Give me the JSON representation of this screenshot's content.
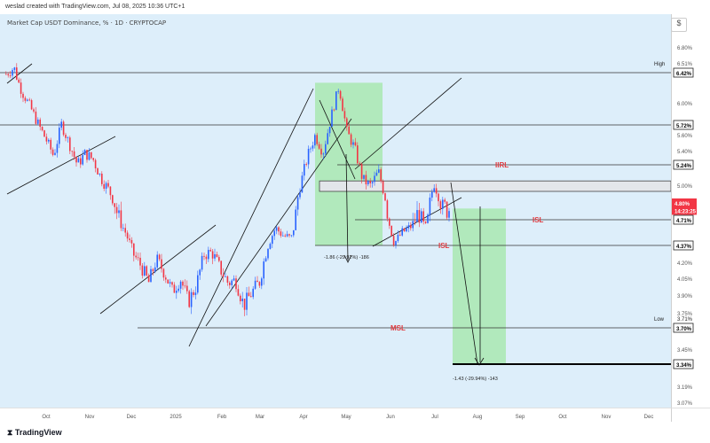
{
  "header": {
    "created_by": "weslad created with TradingView.com, Jul 08, 2025 10:36 UTC+1"
  },
  "footer": {
    "brand": "TradingView"
  },
  "chart_data": {
    "type": "candlestick",
    "title": "Market Cap USDT Dominance, % · 1D · CRYPTOCAP",
    "x_tick_labels": [
      "Oct",
      "Nov",
      "Dec",
      "2025",
      "Feb",
      "Mar",
      "Apr",
      "May",
      "Jun",
      "Jul",
      "Aug",
      "Sep",
      "Oct",
      "Nov",
      "Dec"
    ],
    "y_tick_labels": [
      "6.80%",
      "6.51%",
      "6.00%",
      "5.60%",
      "5.40%",
      "5.00%",
      "4.20%",
      "4.05%",
      "3.90%",
      "3.75%",
      "3.45%",
      "3.19%",
      "3.07%"
    ],
    "ylim": [
      3.03,
      7.09
    ],
    "y_scale": "non-linear",
    "price_labels": [
      {
        "text": "High",
        "value": 6.51,
        "style": "plain"
      },
      {
        "text": "6.42%",
        "value": 6.42,
        "style": "box"
      },
      {
        "text": "5.72%",
        "value": 5.72,
        "style": "box"
      },
      {
        "text": "5.24%",
        "value": 5.24,
        "style": "box"
      },
      {
        "text": "4.80%",
        "value": 4.8,
        "style": "red"
      },
      {
        "text": "14:23:25",
        "value": 4.76,
        "style": "red"
      },
      {
        "text": "4.71%",
        "value": 4.71,
        "style": "box"
      },
      {
        "text": "4.37%",
        "value": 4.37,
        "style": "box"
      },
      {
        "text": "Low",
        "value": 3.71,
        "style": "plain"
      },
      {
        "text": "3.71%",
        "value": 3.71,
        "style": "plainnum"
      },
      {
        "text": "3.70%",
        "value": 3.7,
        "style": "box"
      },
      {
        "text": "3.34%",
        "value": 3.34,
        "style": "box"
      }
    ],
    "horizontal_levels": [
      6.42,
      5.72,
      5.24,
      4.71,
      4.37,
      3.7,
      3.34
    ],
    "level_labels": [
      {
        "text": "IIRL",
        "level": 5.24,
        "color": "#e0393e"
      },
      {
        "text": "ISL",
        "level": 4.71,
        "color": "#e0393e"
      },
      {
        "text": "ISL",
        "level": 4.37,
        "color": "#e0393e"
      },
      {
        "text": "MSL",
        "level": 3.7,
        "color": "#e0393e"
      }
    ],
    "measurements": [
      {
        "text": "-1.86 (-29.92%) -186",
        "from": 6.23,
        "to": 4.37
      },
      {
        "text": "-1.43 (-29.94%) -143",
        "from": 4.77,
        "to": 3.34
      }
    ],
    "series": [
      {
        "name": "USDT.D",
        "close_path": [
          6.4,
          6.47,
          6.15,
          5.96,
          5.74,
          5.55,
          5.34,
          5.73,
          5.48,
          5.24,
          5.37,
          5.3,
          5.08,
          4.94,
          4.75,
          4.56,
          4.29,
          4.17,
          4.01,
          4.23,
          4.1,
          3.93,
          4.05,
          3.84,
          3.98,
          4.28,
          4.3,
          4.14,
          4.01,
          4.03,
          3.81,
          3.92,
          4.02,
          4.37,
          4.6,
          4.5,
          4.46,
          4.95,
          5.32,
          5.59,
          5.38,
          5.81,
          6.23,
          5.64,
          5.43,
          5.07,
          4.99,
          5.16,
          4.81,
          4.4,
          4.54,
          4.61,
          4.75,
          4.6,
          5.03,
          4.78,
          4.77
        ]
      }
    ]
  }
}
